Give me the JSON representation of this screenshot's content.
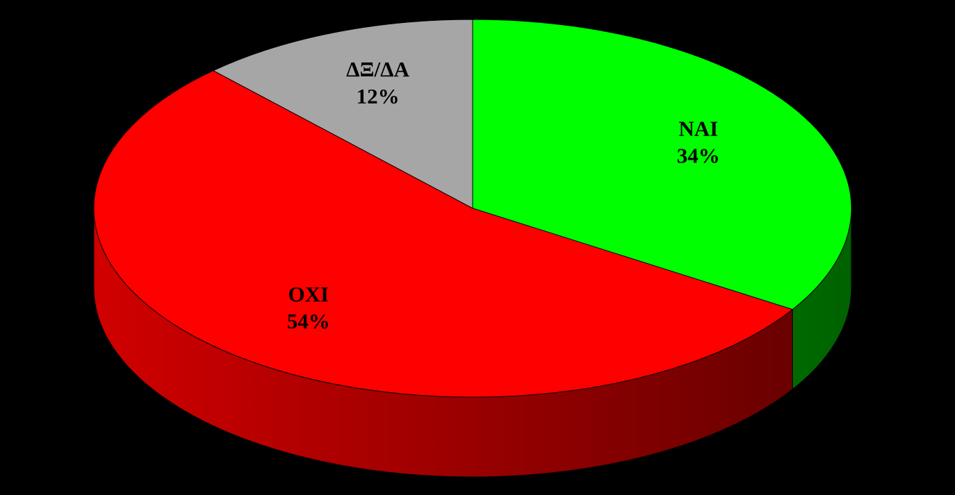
{
  "chart_data": {
    "type": "pie",
    "categories": [
      "ΝΑΙ",
      "ΟΧΙ",
      "ΔΞ/ΔΑ"
    ],
    "values": [
      34,
      54,
      12
    ],
    "value_labels": [
      "34%",
      "54%",
      "12%"
    ],
    "colors": [
      "#00ff00",
      "#ff0000",
      "#a6a6a6"
    ]
  }
}
